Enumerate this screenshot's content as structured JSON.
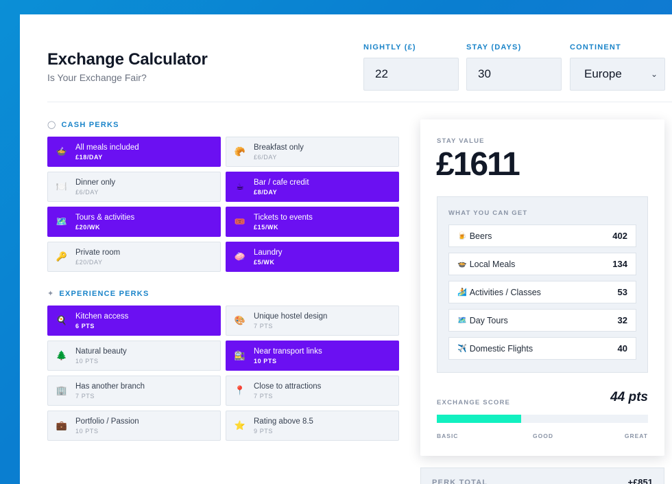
{
  "header": {
    "title": "Exchange Calculator",
    "subtitle": "Is Your Exchange Fair?"
  },
  "inputs": {
    "nightly": {
      "label": "NIGHTLY (£)",
      "value": "22"
    },
    "stay": {
      "label": "STAY (DAYS)",
      "value": "30"
    },
    "continent": {
      "label": "CONTINENT",
      "value": "Europe"
    }
  },
  "cash_perks": {
    "heading": "CASH PERKS",
    "items": [
      {
        "name": "All meals included",
        "value": "£18/DAY",
        "icon": "🍲",
        "selected": true
      },
      {
        "name": "Breakfast only",
        "value": "£6/DAY",
        "icon": "🥐",
        "selected": false
      },
      {
        "name": "Dinner only",
        "value": "£6/DAY",
        "icon": "🍽️",
        "selected": false
      },
      {
        "name": "Bar / cafe credit",
        "value": "£8/DAY",
        "icon": "☕",
        "selected": true
      },
      {
        "name": "Tours & activities",
        "value": "£20/WK",
        "icon": "🗺️",
        "selected": true
      },
      {
        "name": "Tickets to events",
        "value": "£15/WK",
        "icon": "🎟️",
        "selected": true
      },
      {
        "name": "Private room",
        "value": "£20/DAY",
        "icon": "🔑",
        "selected": false
      },
      {
        "name": "Laundry",
        "value": "£5/WK",
        "icon": "🧼",
        "selected": true
      }
    ]
  },
  "experience_perks": {
    "heading": "EXPERIENCE PERKS",
    "items": [
      {
        "name": "Kitchen access",
        "value": "6 PTS",
        "icon": "🍳",
        "selected": true
      },
      {
        "name": "Unique hostel design",
        "value": "7 PTS",
        "icon": "🎨",
        "selected": false
      },
      {
        "name": "Natural beauty",
        "value": "10 PTS",
        "icon": "🌲",
        "selected": false
      },
      {
        "name": "Near transport links",
        "value": "10 PTS",
        "icon": "🚉",
        "selected": true
      },
      {
        "name": "Has another branch",
        "value": "7 PTS",
        "icon": "🏢",
        "selected": false
      },
      {
        "name": "Close to attractions",
        "value": "7 PTS",
        "icon": "📍",
        "selected": false
      },
      {
        "name": "Portfolio / Passion",
        "value": "10 PTS",
        "icon": "💼",
        "selected": false
      },
      {
        "name": "Rating above 8.5",
        "value": "9 PTS",
        "icon": "⭐",
        "selected": false
      }
    ]
  },
  "summary": {
    "stay_label": "STAY VALUE",
    "stay_value": "£1611",
    "get_label": "WHAT YOU CAN GET",
    "get_items": [
      {
        "icon": "🍺",
        "name": "Beers",
        "count": "402"
      },
      {
        "icon": "🍲",
        "name": "Local Meals",
        "count": "134"
      },
      {
        "icon": "🏄",
        "name": "Activities / Classes",
        "count": "53"
      },
      {
        "icon": "🗺️",
        "name": "Day Tours",
        "count": "32"
      },
      {
        "icon": "✈️",
        "name": "Domestic Flights",
        "count": "40"
      }
    ],
    "score_label": "EXCHANGE SCORE",
    "score_value": "44 pts",
    "score_fraction": 0.4,
    "score_scale": [
      "BASIC",
      "GOOD",
      "GREAT"
    ],
    "total_label": "PERK TOTAL",
    "total_value": "+£851"
  },
  "colors": {
    "accent": "#1a84c9",
    "selected": "#6b10f2",
    "score": "#12f0c0"
  }
}
